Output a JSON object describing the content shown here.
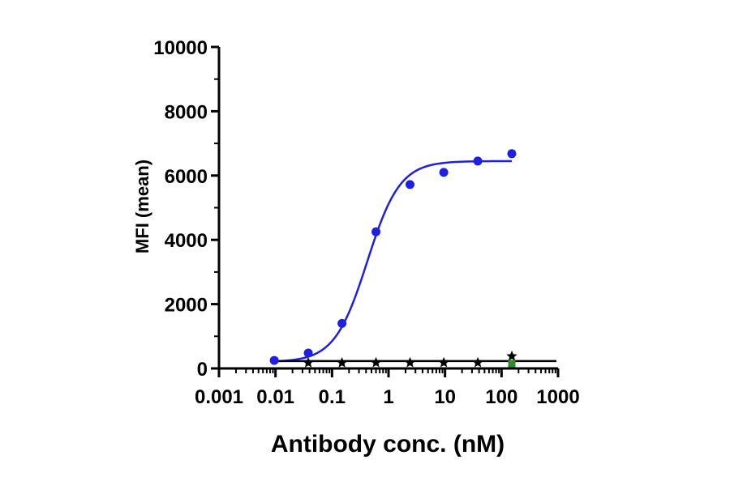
{
  "chart_data": {
    "type": "scatter",
    "title": "",
    "xlabel": "Antibody conc. (nM)",
    "ylabel": "MFI (mean)",
    "xscale": "log",
    "xlim": [
      0.001,
      1000
    ],
    "ylim": [
      0,
      10000
    ],
    "xticks": [
      0.001,
      0.01,
      0.1,
      1,
      10,
      100,
      1000
    ],
    "xtick_labels": [
      "0.001",
      "0.01",
      "0.1",
      "1",
      "10",
      "100",
      "1000"
    ],
    "yticks": [
      0,
      2000,
      4000,
      6000,
      8000,
      10000
    ],
    "ytick_labels": [
      "0",
      "2000",
      "4000",
      "6000",
      "8000",
      "10000"
    ],
    "grid": false,
    "legend": "none",
    "series": [
      {
        "color": "#1f1fe0",
        "marker": "circle",
        "fit": {
          "model": "4PL",
          "bottom": 200,
          "top": 6450,
          "ec50": 0.42,
          "hill": 1.5
        },
        "x": [
          0.0095,
          0.038,
          0.15,
          0.6,
          2.4,
          9.5,
          38,
          152
        ],
        "y": [
          250,
          480,
          1400,
          4250,
          5720,
          6100,
          6450,
          6680
        ]
      },
      {
        "color": "#000000",
        "marker": "star",
        "line": "flat",
        "x": [
          0.038,
          0.15,
          0.6,
          2.4,
          9.5,
          38,
          152
        ],
        "y": [
          175,
          175,
          180,
          180,
          180,
          180,
          380
        ]
      },
      {
        "color": "#2e8b2e",
        "marker": "square",
        "x": [
          152
        ],
        "y": [
          150
        ]
      }
    ]
  }
}
